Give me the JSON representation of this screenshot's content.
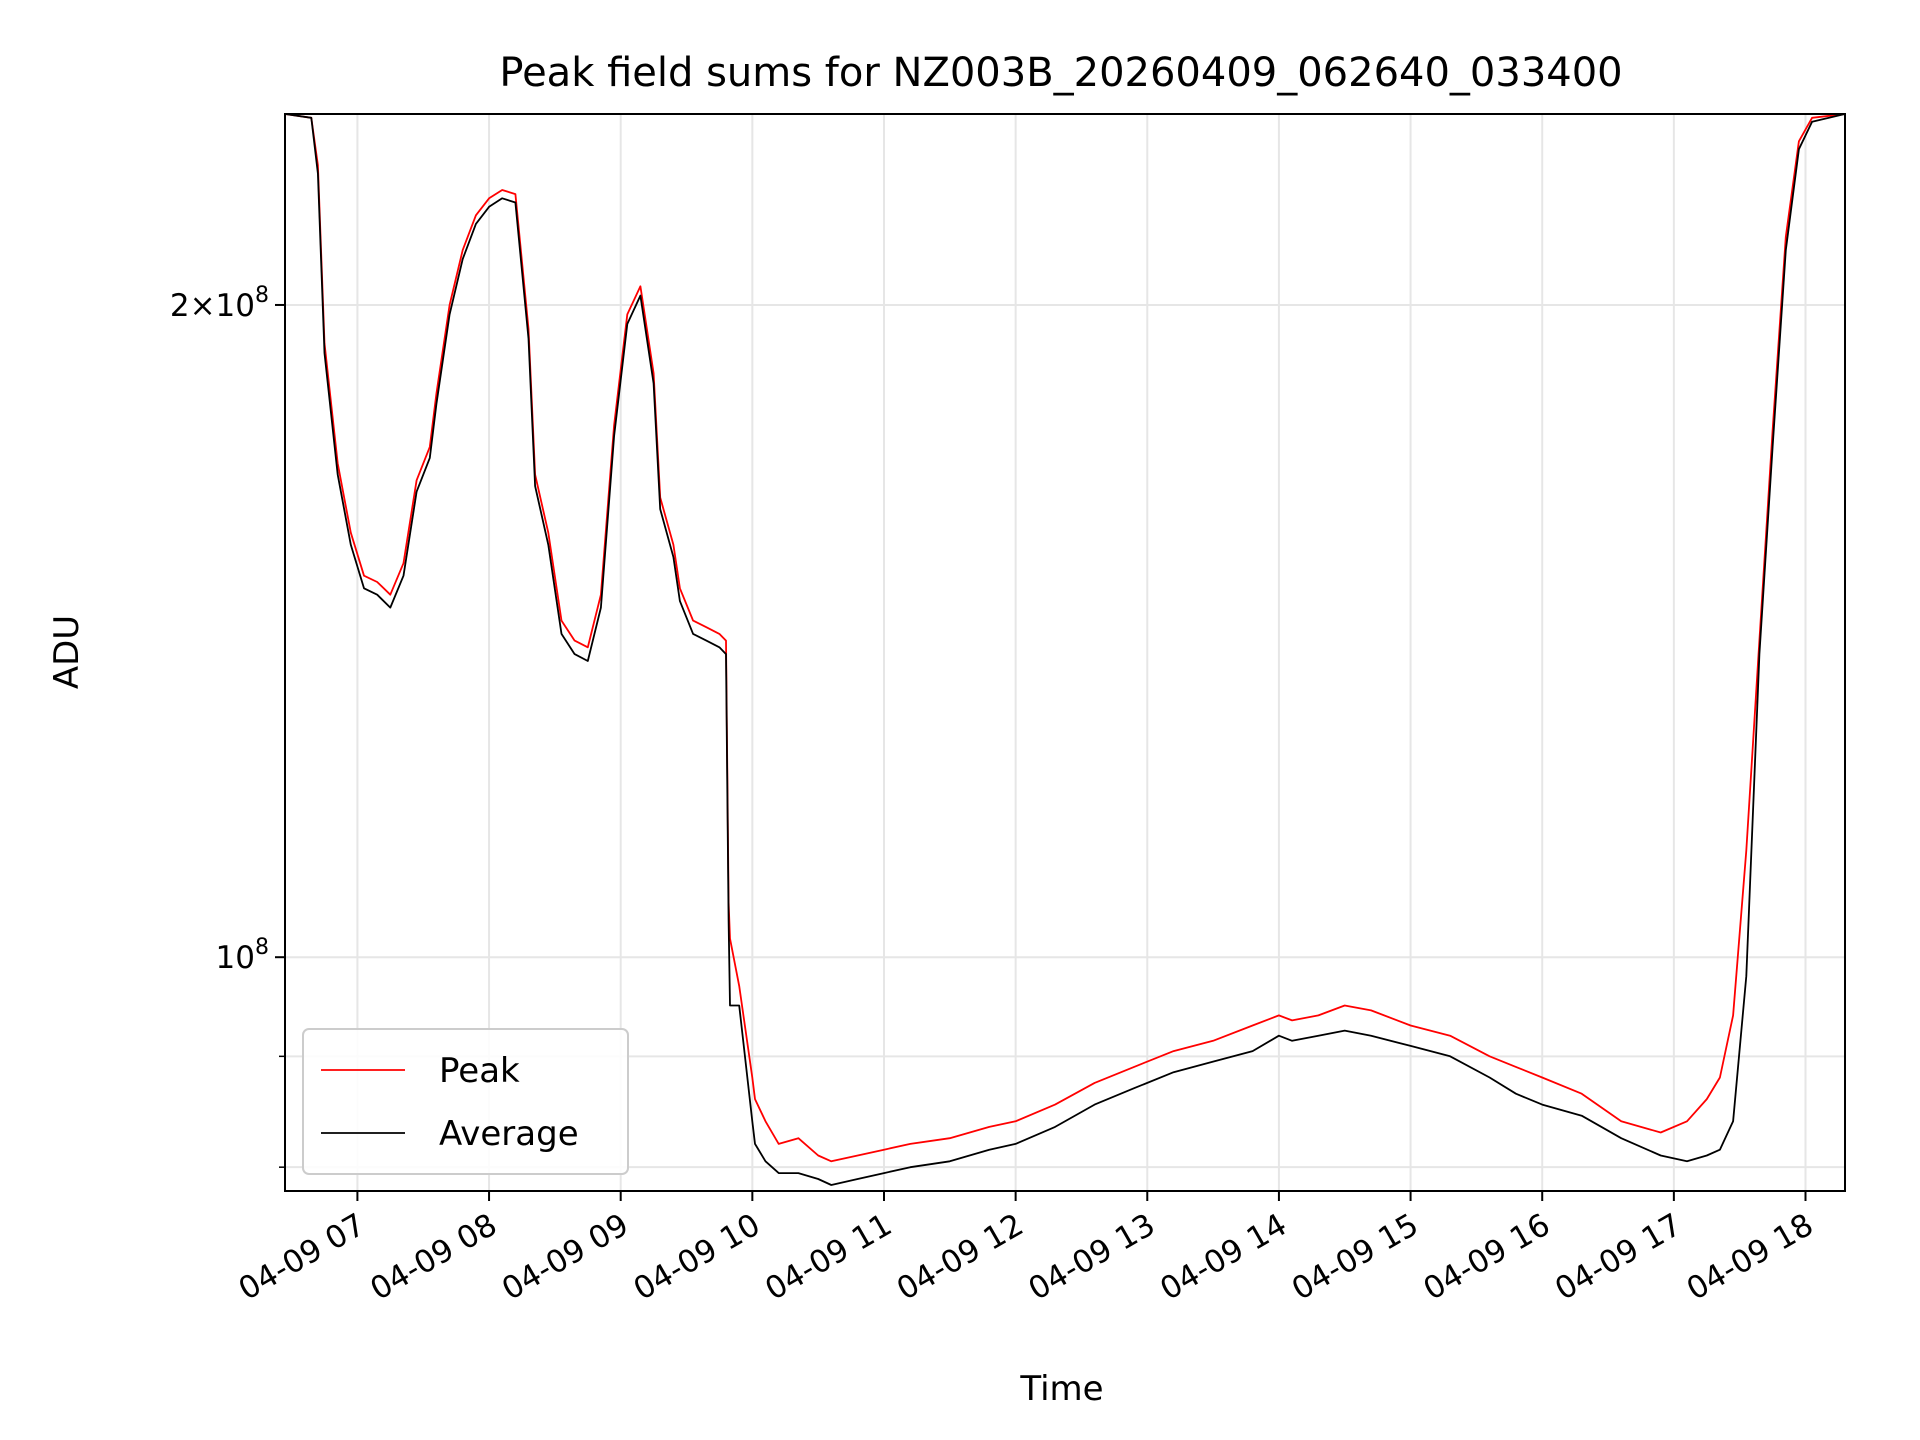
{
  "chart_data": {
    "type": "line",
    "title": "Peak field sums for NZ003B_20260409_062640_033400",
    "xlabel": "Time",
    "ylabel": "ADU",
    "yscale": "log",
    "grid": true,
    "legend_position": "lower-left",
    "xlim": [
      6.45,
      18.3
    ],
    "ylim": [
      78000000,
      245000000
    ],
    "x_ticks": [
      {
        "value": 7,
        "label": "04-09 07"
      },
      {
        "value": 8,
        "label": "04-09 08"
      },
      {
        "value": 9,
        "label": "04-09 09"
      },
      {
        "value": 10,
        "label": "04-09 10"
      },
      {
        "value": 11,
        "label": "04-09 11"
      },
      {
        "value": 12,
        "label": "04-09 12"
      },
      {
        "value": 13,
        "label": "04-09 13"
      },
      {
        "value": 14,
        "label": "04-09 14"
      },
      {
        "value": 15,
        "label": "04-09 15"
      },
      {
        "value": 16,
        "label": "04-09 16"
      },
      {
        "value": 17,
        "label": "04-09 17"
      },
      {
        "value": 18,
        "label": "04-09 18"
      }
    ],
    "y_ticks": [
      {
        "value": 100000000,
        "base": "10",
        "exp": "8",
        "coef": ""
      },
      {
        "value": 200000000,
        "base": "10",
        "exp": "8",
        "coef": "2"
      }
    ],
    "y_minor_ticks": [
      80000000,
      90000000
    ],
    "series": [
      {
        "name": "Peak",
        "color": "#ff0000",
        "x": [
          6.45,
          6.65,
          6.7,
          6.75,
          6.85,
          6.95,
          7.05,
          7.15,
          7.25,
          7.35,
          7.45,
          7.55,
          7.6,
          7.7,
          7.8,
          7.9,
          8.0,
          8.1,
          8.2,
          8.3,
          8.35,
          8.45,
          8.55,
          8.65,
          8.75,
          8.85,
          8.95,
          9.05,
          9.15,
          9.25,
          9.3,
          9.4,
          9.45,
          9.55,
          9.65,
          9.75,
          9.8,
          9.82,
          9.83,
          9.9,
          10.0,
          10.02,
          10.1,
          10.2,
          10.35,
          10.5,
          10.6,
          10.8,
          11.0,
          11.2,
          11.5,
          11.8,
          12.0,
          12.3,
          12.6,
          12.9,
          13.2,
          13.5,
          13.8,
          14.0,
          14.1,
          14.3,
          14.5,
          14.7,
          15.0,
          15.3,
          15.6,
          15.8,
          16.0,
          16.3,
          16.6,
          16.9,
          17.1,
          17.25,
          17.35,
          17.45,
          17.55,
          17.65,
          17.75,
          17.85,
          17.95,
          18.05,
          18.3
        ],
        "y": [
          245000000,
          244000000,
          232000000,
          192000000,
          169000000,
          157000000,
          150000000,
          149000000,
          147000000,
          152000000,
          166000000,
          172000000,
          182000000,
          200000000,
          212000000,
          220000000,
          224000000,
          226000000,
          225000000,
          195000000,
          167000000,
          157000000,
          143000000,
          140000000,
          139000000,
          147000000,
          176000000,
          198000000,
          204000000,
          186000000,
          163000000,
          155000000,
          148000000,
          143000000,
          142000000,
          141000000,
          140000000,
          106000000,
          102000000,
          97000000,
          88000000,
          86000000,
          84000000,
          82000000,
          82500000,
          81000000,
          80500000,
          81000000,
          81500000,
          82000000,
          82500000,
          83500000,
          84000000,
          85500000,
          87500000,
          89000000,
          90500000,
          91500000,
          93000000,
          94000000,
          93500000,
          94000000,
          95000000,
          94500000,
          93000000,
          92000000,
          90000000,
          89000000,
          88000000,
          86500000,
          84000000,
          83000000,
          84000000,
          86000000,
          88000000,
          94000000,
          112000000,
          140000000,
          175000000,
          215000000,
          238000000,
          244000000,
          245000000
        ]
      },
      {
        "name": "Average",
        "color": "#000000",
        "x": [
          6.45,
          6.65,
          6.7,
          6.75,
          6.85,
          6.95,
          7.05,
          7.15,
          7.25,
          7.35,
          7.45,
          7.55,
          7.6,
          7.7,
          7.8,
          7.9,
          8.0,
          8.1,
          8.2,
          8.3,
          8.35,
          8.45,
          8.55,
          8.65,
          8.75,
          8.85,
          8.95,
          9.05,
          9.15,
          9.25,
          9.3,
          9.4,
          9.45,
          9.55,
          9.65,
          9.75,
          9.8,
          9.82,
          9.83,
          9.9,
          10.0,
          10.02,
          10.1,
          10.2,
          10.35,
          10.5,
          10.6,
          10.8,
          11.0,
          11.2,
          11.5,
          11.8,
          12.0,
          12.3,
          12.6,
          12.9,
          13.2,
          13.5,
          13.8,
          14.0,
          14.1,
          14.3,
          14.5,
          14.7,
          15.0,
          15.3,
          15.6,
          15.8,
          16.0,
          16.3,
          16.6,
          16.9,
          17.1,
          17.25,
          17.35,
          17.45,
          17.55,
          17.65,
          17.75,
          17.85,
          17.95,
          18.05,
          18.3
        ],
        "y": [
          245000000,
          244000000,
          230000000,
          190000000,
          167000000,
          155000000,
          148000000,
          147000000,
          145000000,
          150000000,
          164000000,
          170000000,
          180000000,
          198000000,
          210000000,
          218000000,
          222000000,
          224000000,
          223000000,
          193000000,
          165000000,
          155000000,
          141000000,
          138000000,
          137000000,
          145000000,
          174000000,
          196000000,
          202000000,
          184000000,
          161000000,
          153000000,
          146000000,
          141000000,
          140000000,
          139000000,
          138000000,
          104000000,
          95000000,
          95000000,
          84000000,
          82000000,
          80500000,
          79500000,
          79500000,
          79000000,
          78500000,
          79000000,
          79500000,
          80000000,
          80500000,
          81500000,
          82000000,
          83500000,
          85500000,
          87000000,
          88500000,
          89500000,
          90500000,
          92000000,
          91500000,
          92000000,
          92500000,
          92000000,
          91000000,
          90000000,
          88000000,
          86500000,
          85500000,
          84500000,
          82500000,
          81000000,
          80500000,
          81000000,
          81500000,
          84000000,
          98000000,
          138000000,
          172000000,
          212000000,
          236000000,
          243000000,
          245000000
        ]
      }
    ]
  }
}
